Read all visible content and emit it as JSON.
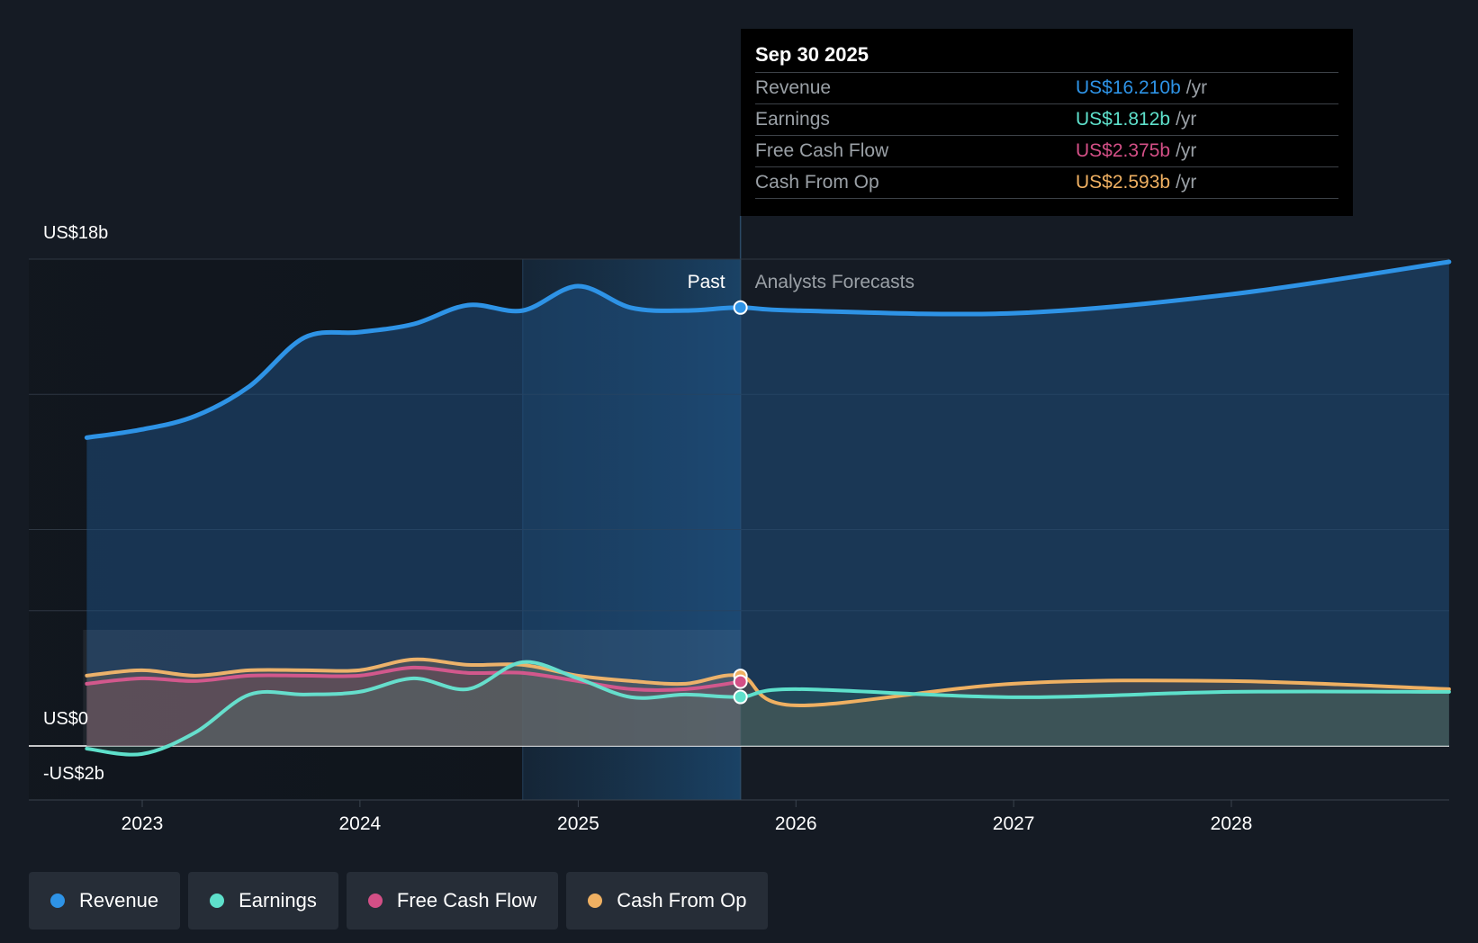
{
  "chart_data": {
    "type": "line",
    "y_unit": "US$ billions",
    "ylim": [
      -2,
      18
    ],
    "y_tick_labels": [
      {
        "value": 18,
        "label": "US$18b"
      },
      {
        "value": 0,
        "label": "US$0"
      },
      {
        "value": -2,
        "label": "-US$2b"
      }
    ],
    "gridlines": [
      18,
      13,
      8,
      5,
      0
    ],
    "x_tick_labels": [
      "2023",
      "2024",
      "2025",
      "2026",
      "2027",
      "2028"
    ],
    "past_label": "Past",
    "forecast_label": "Analysts Forecasts",
    "divider_date": "2025-09-30",
    "series": [
      {
        "name": "Revenue",
        "color": "#2e93e6",
        "points": [
          [
            "2022-09-30",
            11.4
          ],
          [
            "2022-12-31",
            11.7
          ],
          [
            "2023-03-31",
            12.2
          ],
          [
            "2023-06-30",
            13.3
          ],
          [
            "2023-09-30",
            15.1
          ],
          [
            "2023-12-31",
            15.3
          ],
          [
            "2024-03-31",
            15.6
          ],
          [
            "2024-06-30",
            16.3
          ],
          [
            "2024-09-30",
            16.1
          ],
          [
            "2024-12-31",
            17.0
          ],
          [
            "2025-03-31",
            16.2
          ],
          [
            "2025-06-30",
            16.1
          ],
          [
            "2025-09-30",
            16.21
          ],
          [
            "2025-12-31",
            16.1
          ],
          [
            "2026-12-31",
            16.0
          ],
          [
            "2027-12-31",
            16.7
          ],
          [
            "2028-12-31",
            17.9
          ]
        ]
      },
      {
        "name": "Earnings",
        "color": "#5ee0cb",
        "points": [
          [
            "2022-09-30",
            -0.1
          ],
          [
            "2022-12-31",
            -0.3
          ],
          [
            "2023-03-31",
            0.5
          ],
          [
            "2023-06-30",
            1.9
          ],
          [
            "2023-09-30",
            1.9
          ],
          [
            "2023-12-31",
            2.0
          ],
          [
            "2024-03-31",
            2.5
          ],
          [
            "2024-06-30",
            2.1
          ],
          [
            "2024-09-30",
            3.1
          ],
          [
            "2024-12-31",
            2.5
          ],
          [
            "2025-03-31",
            1.8
          ],
          [
            "2025-06-30",
            1.9
          ],
          [
            "2025-09-30",
            1.812
          ],
          [
            "2025-12-31",
            2.1
          ],
          [
            "2026-12-31",
            1.8
          ],
          [
            "2027-12-31",
            2.0
          ],
          [
            "2028-12-31",
            2.0
          ]
        ]
      },
      {
        "name": "Free Cash Flow",
        "color": "#d34f86",
        "points": [
          [
            "2022-09-30",
            2.3
          ],
          [
            "2022-12-31",
            2.5
          ],
          [
            "2023-03-31",
            2.4
          ],
          [
            "2023-06-30",
            2.6
          ],
          [
            "2023-09-30",
            2.6
          ],
          [
            "2023-12-31",
            2.6
          ],
          [
            "2024-03-31",
            2.9
          ],
          [
            "2024-06-30",
            2.7
          ],
          [
            "2024-09-30",
            2.7
          ],
          [
            "2024-12-31",
            2.4
          ],
          [
            "2025-03-31",
            2.1
          ],
          [
            "2025-06-30",
            2.1
          ],
          [
            "2025-09-30",
            2.375
          ]
        ]
      },
      {
        "name": "Cash From Op",
        "color": "#efb062",
        "points": [
          [
            "2022-09-30",
            2.6
          ],
          [
            "2022-12-31",
            2.8
          ],
          [
            "2023-03-31",
            2.6
          ],
          [
            "2023-06-30",
            2.8
          ],
          [
            "2023-09-30",
            2.8
          ],
          [
            "2023-12-31",
            2.8
          ],
          [
            "2024-03-31",
            3.2
          ],
          [
            "2024-06-30",
            3.0
          ],
          [
            "2024-09-30",
            3.0
          ],
          [
            "2024-12-31",
            2.6
          ],
          [
            "2025-03-31",
            2.4
          ],
          [
            "2025-06-30",
            2.3
          ],
          [
            "2025-09-30",
            2.593
          ],
          [
            "2025-12-31",
            1.5
          ],
          [
            "2026-12-31",
            2.3
          ],
          [
            "2027-12-31",
            2.4
          ],
          [
            "2028-12-31",
            2.1
          ]
        ]
      }
    ]
  },
  "tooltip": {
    "date": "Sep 30 2025",
    "unit": "/yr",
    "rows": [
      {
        "name": "Revenue",
        "value": "US$16.210b",
        "color": "#2e93e6"
      },
      {
        "name": "Earnings",
        "value": "US$1.812b",
        "color": "#5ee0cb"
      },
      {
        "name": "Free Cash Flow",
        "value": "US$2.375b",
        "color": "#d34f86"
      },
      {
        "name": "Cash From Op",
        "value": "US$2.593b",
        "color": "#efb062"
      }
    ]
  },
  "legend": [
    {
      "label": "Revenue",
      "color": "#2e93e6"
    },
    {
      "label": "Earnings",
      "color": "#5ee0cb"
    },
    {
      "label": "Free Cash Flow",
      "color": "#d34f86"
    },
    {
      "label": "Cash From Op",
      "color": "#efb062"
    }
  ]
}
